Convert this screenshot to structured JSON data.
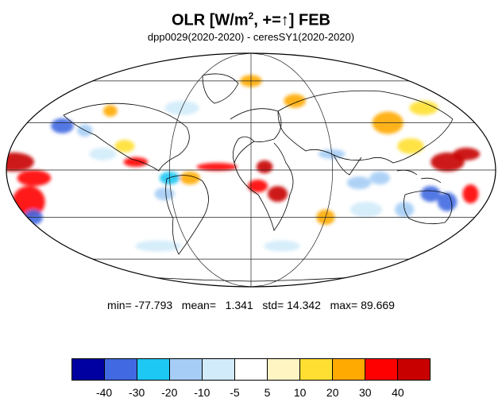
{
  "title": {
    "main": "OLR [W/m",
    "sup": "2",
    "suffix": ", +=↑] FEB"
  },
  "subtitle": "dpp0029(2020-2020) - ceresSY1(2020-2020)",
  "stats": {
    "text": "min= -77.793   mean=   1.341   std= 14.342   max= 89.669"
  },
  "map": {
    "projection": "mollweide",
    "variable": "OLR difference",
    "units": "W/m2"
  },
  "colorbar": {
    "colors": [
      "#0000a0",
      "#4169e1",
      "#1ec8f5",
      "#a5cdf5",
      "#d2ebfa",
      "#ffffff",
      "#fff5c3",
      "#ffe032",
      "#ffaa00",
      "#ff0000",
      "#c80000"
    ],
    "ticks": [
      "-40",
      "-30",
      "-20",
      "-10",
      "-5",
      "5",
      "10",
      "20",
      "30",
      "40"
    ]
  },
  "anomalies": [
    {
      "lon": -175,
      "lat": 5,
      "value": 40,
      "w": 30,
      "h": 12
    },
    {
      "lon": -160,
      "lat": -5,
      "value": 30,
      "w": 25,
      "h": 10
    },
    {
      "lon": -170,
      "lat": -20,
      "value": 30,
      "w": 25,
      "h": 20
    },
    {
      "lon": -175,
      "lat": -30,
      "value": -40,
      "w": 15,
      "h": 10
    },
    {
      "lon": -150,
      "lat": 28,
      "value": -40,
      "w": 18,
      "h": 10
    },
    {
      "lon": -130,
      "lat": 25,
      "value": -20,
      "w": 12,
      "h": 8
    },
    {
      "lon": -120,
      "lat": 38,
      "value": 20,
      "w": 12,
      "h": 8
    },
    {
      "lon": -110,
      "lat": 10,
      "value": -10,
      "w": 20,
      "h": 8
    },
    {
      "lon": -95,
      "lat": 15,
      "value": 10,
      "w": 15,
      "h": 8
    },
    {
      "lon": -85,
      "lat": 5,
      "value": 30,
      "w": 18,
      "h": 6
    },
    {
      "lon": -60,
      "lat": -5,
      "value": -30,
      "w": 15,
      "h": 8
    },
    {
      "lon": -65,
      "lat": -15,
      "value": -20,
      "w": 15,
      "h": 8
    },
    {
      "lon": -45,
      "lat": -5,
      "value": 20,
      "w": 15,
      "h": 8
    },
    {
      "lon": -25,
      "lat": 2,
      "value": 30,
      "w": 30,
      "h": 5
    },
    {
      "lon": 10,
      "lat": 2,
      "value": 40,
      "w": 12,
      "h": 8
    },
    {
      "lon": 20,
      "lat": -15,
      "value": 40,
      "w": 15,
      "h": 10
    },
    {
      "lon": 5,
      "lat": -10,
      "value": 30,
      "w": 15,
      "h": 8
    },
    {
      "lon": 40,
      "lat": 45,
      "value": 20,
      "w": 20,
      "h": 10
    },
    {
      "lon": 0,
      "lat": 60,
      "value": 20,
      "w": 25,
      "h": 10
    },
    {
      "lon": 60,
      "lat": 10,
      "value": -20,
      "w": 20,
      "h": 6
    },
    {
      "lon": 80,
      "lat": -8,
      "value": -20,
      "w": 18,
      "h": 8
    },
    {
      "lon": 95,
      "lat": -5,
      "value": -20,
      "w": 15,
      "h": 8
    },
    {
      "lon": 110,
      "lat": 30,
      "value": 20,
      "w": 25,
      "h": 15
    },
    {
      "lon": 120,
      "lat": 15,
      "value": 10,
      "w": 20,
      "h": 10
    },
    {
      "lon": 145,
      "lat": 5,
      "value": 40,
      "w": 25,
      "h": 12
    },
    {
      "lon": 160,
      "lat": 10,
      "value": 40,
      "w": 20,
      "h": 8
    },
    {
      "lon": 135,
      "lat": -15,
      "value": -40,
      "w": 15,
      "h": 10
    },
    {
      "lon": 150,
      "lat": -20,
      "value": -40,
      "w": 15,
      "h": 12
    },
    {
      "lon": 165,
      "lat": -15,
      "value": 30,
      "w": 12,
      "h": 12
    },
    {
      "lon": 120,
      "lat": -25,
      "value": -20,
      "w": 15,
      "h": 10
    },
    {
      "lon": 90,
      "lat": -25,
      "value": -10,
      "w": 25,
      "h": 10
    },
    {
      "lon": 60,
      "lat": -30,
      "value": 20,
      "w": 15,
      "h": 10
    },
    {
      "lon": 30,
      "lat": -50,
      "value": -10,
      "w": 35,
      "h": 8
    },
    {
      "lon": -90,
      "lat": -50,
      "value": -10,
      "w": 45,
      "h": 8
    },
    {
      "lon": -60,
      "lat": 40,
      "value": -10,
      "w": 30,
      "h": 10
    },
    {
      "lon": 150,
      "lat": 40,
      "value": 10,
      "w": 25,
      "h": 10
    }
  ]
}
